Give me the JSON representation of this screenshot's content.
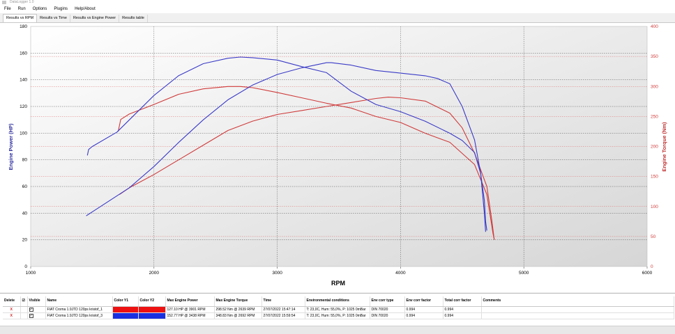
{
  "window": {
    "title": "DataLogger 1.0"
  },
  "menu": [
    "File",
    "Run",
    "Options",
    "Plugins",
    "Help/About"
  ],
  "tabs": [
    {
      "label": "Results vs RPM",
      "active": true
    },
    {
      "label": "Results vs Time",
      "active": false
    },
    {
      "label": "Results vs Engine Power",
      "active": false
    },
    {
      "label": "Results table",
      "active": false
    }
  ],
  "chart_data": {
    "type": "line",
    "xlabel": "RPM",
    "ylabel_left": "Engine Power (HP)",
    "ylabel_right": "Engine Torque (Nm)",
    "xlim": [
      1000,
      6000
    ],
    "ylim_left": [
      0,
      180
    ],
    "ylim_right": [
      0,
      400
    ],
    "x_ticks": [
      1000,
      2000,
      3000,
      4000,
      5000,
      6000
    ],
    "y_left_ticks": [
      0,
      20,
      40,
      60,
      80,
      100,
      120,
      140,
      160,
      180
    ],
    "y_right_ticks": [
      0,
      50,
      100,
      150,
      200,
      250,
      300,
      350,
      400
    ],
    "grid": true,
    "colors": {
      "blue": "#3a3ac8",
      "red": "#d03a3a",
      "left_axis": "#3030a0",
      "right_axis": "#c03030"
    },
    "series": [
      {
        "run": 1,
        "kind": "power",
        "axis": "left",
        "color": "#d03a3a",
        "points": [
          [
            1720,
            54
          ],
          [
            1800,
            59
          ],
          [
            2000,
            69
          ],
          [
            2200,
            80
          ],
          [
            2400,
            91
          ],
          [
            2600,
            102
          ],
          [
            2800,
            109
          ],
          [
            3000,
            114
          ],
          [
            3200,
            117
          ],
          [
            3400,
            120
          ],
          [
            3600,
            123
          ],
          [
            3800,
            126
          ],
          [
            3900,
            127
          ],
          [
            4000,
            126.5
          ],
          [
            4200,
            124
          ],
          [
            4400,
            115
          ],
          [
            4500,
            104
          ],
          [
            4600,
            85
          ],
          [
            4700,
            60
          ],
          [
            4740,
            35
          ],
          [
            4760,
            20
          ]
        ]
      },
      {
        "run": 1,
        "kind": "torque",
        "axis": "right",
        "color": "#d03a3a",
        "points": [
          [
            1710,
            225
          ],
          [
            1730,
            245
          ],
          [
            1800,
            254
          ],
          [
            2000,
            270
          ],
          [
            2200,
            287
          ],
          [
            2400,
            296
          ],
          [
            2600,
            300
          ],
          [
            2700,
            300
          ],
          [
            2800,
            298
          ],
          [
            3000,
            290
          ],
          [
            3200,
            281
          ],
          [
            3400,
            272
          ],
          [
            3600,
            264
          ],
          [
            3800,
            250
          ],
          [
            4000,
            240
          ],
          [
            4200,
            222
          ],
          [
            4400,
            207
          ],
          [
            4600,
            170
          ],
          [
            4700,
            120
          ],
          [
            4750,
            55
          ],
          [
            4760,
            45
          ]
        ]
      },
      {
        "run": 2,
        "kind": "power",
        "axis": "left",
        "color": "#3a3ac8",
        "points": [
          [
            1450,
            38
          ],
          [
            1500,
            41
          ],
          [
            1800,
            59
          ],
          [
            2000,
            75
          ],
          [
            2200,
            93
          ],
          [
            2400,
            110
          ],
          [
            2600,
            125
          ],
          [
            2800,
            136
          ],
          [
            3000,
            144
          ],
          [
            3200,
            149
          ],
          [
            3400,
            152.8
          ],
          [
            3438,
            152.8
          ],
          [
            3600,
            151
          ],
          [
            3800,
            147
          ],
          [
            4000,
            145
          ],
          [
            4200,
            143
          ],
          [
            4300,
            141
          ],
          [
            4400,
            137
          ],
          [
            4500,
            120
          ],
          [
            4600,
            95
          ],
          [
            4650,
            70
          ],
          [
            4680,
            40
          ],
          [
            4690,
            26
          ]
        ]
      },
      {
        "run": 2,
        "kind": "torque",
        "axis": "right",
        "color": "#3a3ac8",
        "points": [
          [
            1460,
            185
          ],
          [
            1470,
            195
          ],
          [
            1500,
            200
          ],
          [
            1700,
            224
          ],
          [
            2000,
            285
          ],
          [
            2200,
            318
          ],
          [
            2400,
            338
          ],
          [
            2600,
            347
          ],
          [
            2700,
            349
          ],
          [
            2800,
            348
          ],
          [
            3000,
            344
          ],
          [
            3200,
            333
          ],
          [
            3400,
            323
          ],
          [
            3600,
            292
          ],
          [
            3800,
            270
          ],
          [
            4000,
            258
          ],
          [
            4200,
            242
          ],
          [
            4400,
            222
          ],
          [
            4500,
            210
          ],
          [
            4600,
            190
          ],
          [
            4650,
            155
          ],
          [
            4680,
            110
          ],
          [
            4690,
            75
          ],
          [
            4700,
            60
          ]
        ]
      }
    ]
  },
  "results_table": {
    "headers": [
      "Delete",
      "☑",
      "Visible",
      "Name",
      "Color Y1",
      "Color Y2",
      "Max Engine Power",
      "Max Engine Torque",
      "Time",
      "Environmental conditions",
      "Env corr type",
      "Env corr factor",
      "Total corr factor",
      "Comments"
    ],
    "rows": [
      {
        "delete": "X",
        "visible": "✓",
        "name": "FIAT Croma 1.9JTD 120ps kristof_1",
        "color_y1": "#ee1111",
        "color_y2": "#ee1111",
        "max_power": "127.10 HP @ 3901 RPM",
        "max_torque": "298.52 Nm @ 2639 RPM",
        "time": "27/07/2022 15:47:14",
        "env": "T: 23,0C, Hum: 55,0%, P: 1025 0mBar",
        "env_corr_type": "DIN 70020",
        "env_corr_factor": "0.994",
        "total_corr_factor": "0.994",
        "comments": ""
      },
      {
        "delete": "X",
        "visible": "✓",
        "name": "FIAT Croma 1.9JTD 120ps kristof_3",
        "color_y1": "#1a2fe0",
        "color_y2": "#1a2fe0",
        "max_power": "152.77 HP @ 3438 RPM",
        "max_torque": "348.83 Nm @ 2692 RPM",
        "time": "27/07/2022 15:59:54",
        "env": "T: 23,0C, Hum: 55,0%, P: 1025 0mBar",
        "env_corr_type": "DIN 70020",
        "env_corr_factor": "0.994",
        "total_corr_factor": "0.994",
        "comments": ""
      }
    ]
  }
}
